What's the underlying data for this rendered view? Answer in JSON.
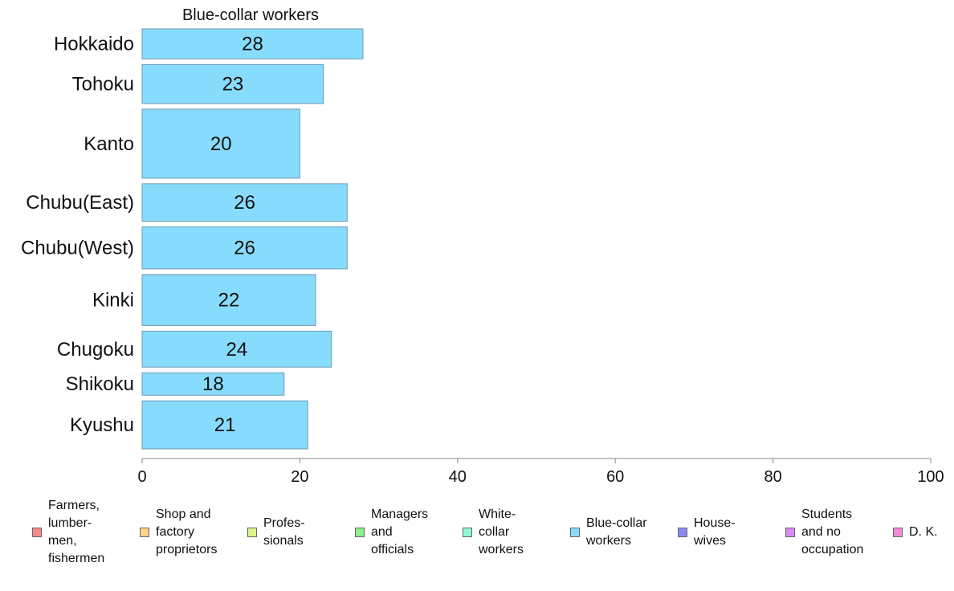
{
  "chart_data": {
    "type": "bar",
    "orientation": "horizontal",
    "title": "Blue-collar workers",
    "categories": [
      "Hokkaido",
      "Tohoku",
      "Kanto",
      "Chubu(East)",
      "Chubu(West)",
      "Kinki",
      "Chugoku",
      "Shikoku",
      "Kyushu"
    ],
    "values": [
      28,
      23,
      20,
      26,
      26,
      22,
      24,
      18,
      21
    ],
    "value_labels": [
      "28",
      "23",
      "20",
      "26",
      "26",
      "22",
      "24",
      "18",
      "21"
    ],
    "bar_weights": [
      1.0,
      1.3,
      2.3,
      1.25,
      1.4,
      1.7,
      1.2,
      0.75,
      1.6
    ],
    "xlim": [
      0,
      100
    ],
    "xticks": [
      0,
      20,
      40,
      60,
      80,
      100
    ],
    "xtick_labels": [
      "0",
      "20",
      "40",
      "60",
      "80",
      "100"
    ],
    "xlabel": "",
    "ylabel": "",
    "grid": false,
    "bar_color": "#87dcfd",
    "bar_edge_color": "#6f9ab0",
    "legend_placement": "bottom",
    "legend": [
      {
        "label": "Farmers,\nlumber-\nmen,\nfishermen",
        "color": "#f58b8b"
      },
      {
        "label": "Shop and\nfactory\nproprietors",
        "color": "#fbd48a"
      },
      {
        "label": "Profes-\nsionals",
        "color": "#dff58a"
      },
      {
        "label": "Managers\nand\nofficials",
        "color": "#8ef08e"
      },
      {
        "label": "White-\ncollar\nworkers",
        "color": "#8efbd8"
      },
      {
        "label": "Blue-collar\nworkers",
        "color": "#87dcfd"
      },
      {
        "label": "House-\nwives",
        "color": "#8a8af5"
      },
      {
        "label": "Students\nand no\noccupation",
        "color": "#d98af5"
      },
      {
        "label": "D. K.",
        "color": "#f58ad8"
      }
    ]
  }
}
